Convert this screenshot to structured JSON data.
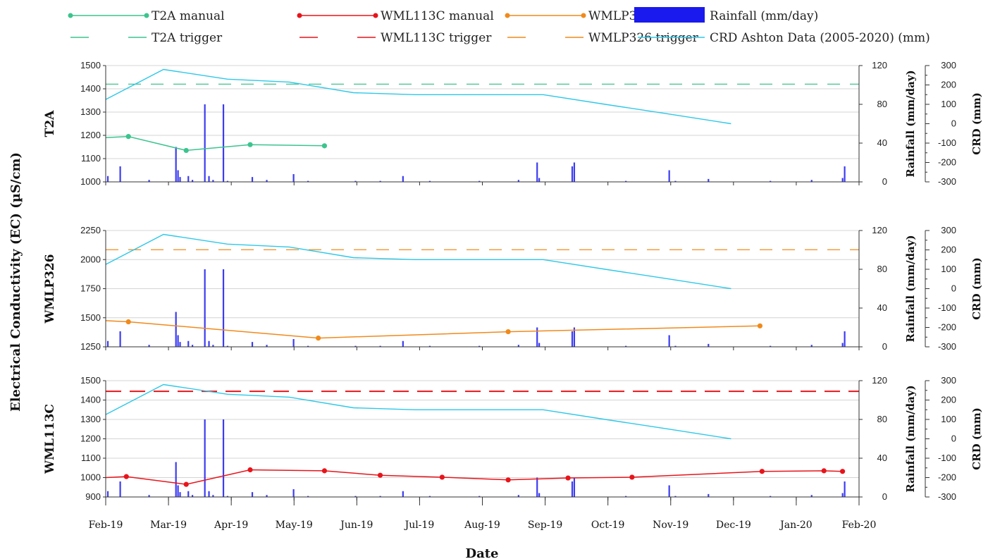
{
  "chart_data": {
    "type": "line",
    "y_axis_label": "Electrical Conductivity (EC) (µS/cm)",
    "x_axis_label": "Date",
    "x_ticks": [
      "Feb-19",
      "Mar-19",
      "Apr-19",
      "May-19",
      "Jun-19",
      "Jul-19",
      "Aug-19",
      "Sep-19",
      "Oct-19",
      "Nov-19",
      "Dec-19",
      "Jan-20",
      "Feb-20"
    ],
    "x_range": [
      "2019-02-01",
      "2020-02-01"
    ],
    "rain_axis_label": "Rainfall (mm/day)",
    "crd_axis_label": "CRD (mm)",
    "rain_ylim": [
      0,
      120
    ],
    "rain_ticks": [
      0,
      40,
      80,
      120
    ],
    "crd_ylim": [
      -300,
      300
    ],
    "crd_ticks": [
      -300,
      -200,
      -100,
      0,
      100,
      200,
      300
    ],
    "legend": [
      {
        "label": "T2A manual",
        "kind": "line-marker",
        "color": "#3cc48e"
      },
      {
        "label": "WML113C manual",
        "kind": "line-marker",
        "color": "#e8141a"
      },
      {
        "label": "WMLP326 manual",
        "kind": "line-marker",
        "color": "#f08a1c"
      },
      {
        "label": "Rainfall (mm/day)",
        "kind": "bar",
        "color": "#1a1aee"
      },
      {
        "label": "T2A trigger",
        "kind": "dash",
        "color": "#3cc48e"
      },
      {
        "label": "WML113C trigger",
        "kind": "dash",
        "color": "#e8141a"
      },
      {
        "label": "WMLP326 trigger",
        "kind": "dash",
        "color": "#f08a1c"
      },
      {
        "label": "CRD Ashton Data (2005-2020) (mm)",
        "kind": "line",
        "color": "#2ec8e8"
      }
    ],
    "crd_series": {
      "name": "CRD Ashton Data (2005-2020) (mm)",
      "color": "#2ec8e8",
      "points": [
        [
          "2019-02-01",
          125
        ],
        [
          "2019-03-01",
          280
        ],
        [
          "2019-04-01",
          230
        ],
        [
          "2019-05-01",
          215
        ],
        [
          "2019-06-01",
          160
        ],
        [
          "2019-07-01",
          150
        ],
        [
          "2019-08-01",
          150
        ],
        [
          "2019-09-01",
          150
        ],
        [
          "2019-10-01",
          100
        ],
        [
          "2019-11-01",
          50
        ],
        [
          "2019-12-01",
          0
        ]
      ]
    },
    "rainfall": {
      "name": "Rainfall (mm/day)",
      "color": "#1a1aee",
      "points": [
        [
          "2019-02-02",
          6
        ],
        [
          "2019-02-08",
          16
        ],
        [
          "2019-02-22",
          2
        ],
        [
          "2019-03-07",
          36
        ],
        [
          "2019-03-08",
          12
        ],
        [
          "2019-03-09",
          5
        ],
        [
          "2019-03-13",
          6
        ],
        [
          "2019-03-15",
          2
        ],
        [
          "2019-03-21",
          80
        ],
        [
          "2019-03-23",
          6
        ],
        [
          "2019-03-25",
          2
        ],
        [
          "2019-03-30",
          80
        ],
        [
          "2019-04-01",
          1
        ],
        [
          "2019-04-13",
          5
        ],
        [
          "2019-04-20",
          2
        ],
        [
          "2019-05-03",
          8
        ],
        [
          "2019-05-10",
          1
        ],
        [
          "2019-06-02",
          1
        ],
        [
          "2019-06-14",
          1
        ],
        [
          "2019-06-25",
          6
        ],
        [
          "2019-07-08",
          1
        ],
        [
          "2019-08-01",
          1
        ],
        [
          "2019-08-20",
          2
        ],
        [
          "2019-08-29",
          20
        ],
        [
          "2019-08-30",
          4
        ],
        [
          "2019-09-15",
          16
        ],
        [
          "2019-09-16",
          20
        ],
        [
          "2019-10-11",
          1
        ],
        [
          "2019-11-01",
          12
        ],
        [
          "2019-11-04",
          1
        ],
        [
          "2019-11-20",
          3
        ],
        [
          "2019-12-20",
          1
        ],
        [
          "2020-01-09",
          2
        ],
        [
          "2020-01-24",
          4
        ],
        [
          "2020-01-25",
          16
        ]
      ]
    },
    "panels": [
      {
        "name": "T2A",
        "ylim": [
          1000,
          1500
        ],
        "yticks": [
          1000,
          1100,
          1200,
          1300,
          1400,
          1500
        ],
        "trigger": {
          "name": "T2A trigger",
          "value": 1420,
          "color": "#3cc48e"
        },
        "manual": {
          "name": "T2A manual",
          "color": "#3cc48e",
          "points": [
            [
              "2019-02-01",
              1190
            ],
            [
              "2019-02-12",
              1195
            ],
            [
              "2019-03-12",
              1135
            ],
            [
              "2019-04-12",
              1160
            ],
            [
              "2019-05-18",
              1155
            ]
          ]
        }
      },
      {
        "name": "WMLP326",
        "ylim": [
          1250,
          2250
        ],
        "yticks": [
          1250,
          1500,
          1750,
          2000,
          2250
        ],
        "trigger": {
          "name": "WMLP326 trigger",
          "value": 2085,
          "color": "#f08a1c"
        },
        "manual": {
          "name": "WMLP326 manual",
          "color": "#f08a1c",
          "points": [
            [
              "2019-02-01",
              1475
            ],
            [
              "2019-02-12",
              1465
            ],
            [
              "2019-05-15",
              1325
            ],
            [
              "2019-08-15",
              1380
            ],
            [
              "2019-12-15",
              1430
            ]
          ]
        }
      },
      {
        "name": "WML113C",
        "ylim": [
          900,
          1500
        ],
        "yticks": [
          900,
          1000,
          1100,
          1200,
          1300,
          1400,
          1500
        ],
        "trigger": {
          "name": "WML113C trigger",
          "value": 1445,
          "color": "#e8141a"
        },
        "manual": {
          "name": "WML113C manual",
          "color": "#e8141a",
          "points": [
            [
              "2019-02-01",
              1000
            ],
            [
              "2019-02-11",
              1005
            ],
            [
              "2019-03-12",
              965
            ],
            [
              "2019-04-12",
              1040
            ],
            [
              "2019-05-18",
              1035
            ],
            [
              "2019-06-14",
              1012
            ],
            [
              "2019-07-14",
              1002
            ],
            [
              "2019-08-15",
              988
            ],
            [
              "2019-09-13",
              998
            ],
            [
              "2019-10-14",
              1002
            ],
            [
              "2019-12-16",
              1032
            ],
            [
              "2020-01-15",
              1035
            ],
            [
              "2020-01-24",
              1032
            ]
          ]
        }
      }
    ]
  }
}
